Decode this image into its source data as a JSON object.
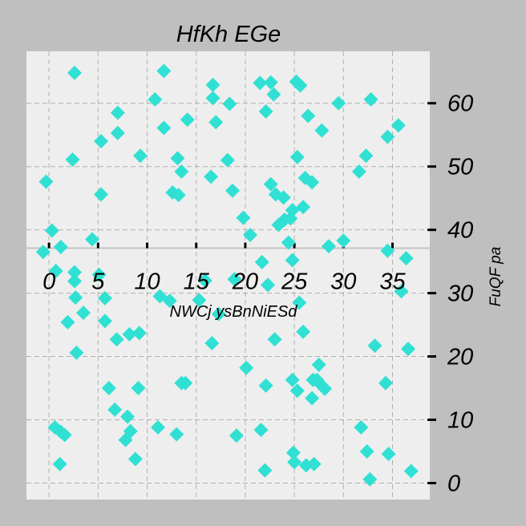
{
  "chart_data": {
    "type": "scatter",
    "title": "HfKh EGe",
    "xlabel": "NWCj ysBnNiESd",
    "ylabel": "FuQF pa",
    "xlim": [
      -2.3,
      38.8
    ],
    "ylim": [
      -2.6,
      68.2
    ],
    "xticks": [
      0,
      5,
      10,
      15,
      20,
      25,
      30,
      35
    ],
    "xtick_labels": [
      "0",
      "5",
      "10",
      "15",
      "20",
      "25",
      "30",
      "35"
    ],
    "yticks": [
      0,
      10,
      20,
      30,
      40,
      50,
      60
    ],
    "ytick_labels": [
      "0",
      "10",
      "20",
      "30",
      "40",
      "50",
      "60"
    ],
    "x_axis_at_y": 37.1,
    "y_axis_side": "right",
    "grid": true,
    "marker": "diamond",
    "color": "#30e0d3",
    "background": "#eeeeee",
    "figure_background": "#bfbfbf",
    "points": [
      [
        -0.3,
        47.6
      ],
      [
        2.6,
        64.8
      ],
      [
        -0.6,
        36.5
      ],
      [
        0.3,
        39.9
      ],
      [
        1.2,
        37.3
      ],
      [
        0.7,
        33.5
      ],
      [
        2.4,
        51.1
      ],
      [
        2.6,
        33.3
      ],
      [
        2.6,
        31.9
      ],
      [
        2.7,
        29.3
      ],
      [
        3.5,
        26.9
      ],
      [
        1.9,
        25.4
      ],
      [
        2.8,
        20.6
      ],
      [
        0.6,
        8.8
      ],
      [
        1.6,
        7.6
      ],
      [
        1.2,
        8.1
      ],
      [
        1.1,
        3.0
      ],
      [
        4.4,
        38.5
      ],
      [
        5.1,
        32.9
      ],
      [
        5.3,
        45.6
      ],
      [
        5.3,
        54.0
      ],
      [
        5.7,
        29.2
      ],
      [
        5.7,
        25.6
      ],
      [
        6.9,
        22.7
      ],
      [
        6.1,
        15.0
      ],
      [
        6.7,
        11.6
      ],
      [
        7.0,
        55.3
      ],
      [
        7.0,
        58.5
      ],
      [
        8.2,
        23.5
      ],
      [
        8.0,
        10.5
      ],
      [
        7.8,
        6.8
      ],
      [
        8.3,
        8.2
      ],
      [
        8.8,
        3.8
      ],
      [
        9.1,
        15.0
      ],
      [
        9.2,
        23.7
      ],
      [
        9.3,
        51.7
      ],
      [
        11.3,
        29.5
      ],
      [
        11.1,
        8.8
      ],
      [
        10.8,
        60.6
      ],
      [
        11.7,
        65.1
      ],
      [
        11.7,
        56.1
      ],
      [
        12.3,
        28.8
      ],
      [
        12.6,
        45.9
      ],
      [
        13.1,
        51.3
      ],
      [
        13.2,
        45.5
      ],
      [
        13.5,
        49.2
      ],
      [
        13.0,
        7.7
      ],
      [
        13.5,
        15.8
      ],
      [
        13.9,
        15.8
      ],
      [
        14.1,
        57.4
      ],
      [
        15.3,
        28.9
      ],
      [
        15.9,
        32.0
      ],
      [
        16.5,
        48.4
      ],
      [
        16.6,
        22.1
      ],
      [
        16.7,
        60.8
      ],
      [
        16.7,
        62.9
      ],
      [
        17.0,
        57.0
      ],
      [
        17.3,
        26.7
      ],
      [
        18.2,
        51.0
      ],
      [
        18.4,
        59.9
      ],
      [
        18.7,
        46.2
      ],
      [
        18.9,
        32.2
      ],
      [
        19.1,
        7.5
      ],
      [
        19.8,
        41.9
      ],
      [
        20.1,
        18.2
      ],
      [
        20.5,
        39.2
      ],
      [
        21.6,
        8.4
      ],
      [
        21.7,
        34.9
      ],
      [
        21.5,
        63.2
      ],
      [
        22.1,
        58.7
      ],
      [
        22.3,
        31.3
      ],
      [
        22.0,
        2.0
      ],
      [
        22.1,
        15.4
      ],
      [
        22.6,
        47.2
      ],
      [
        22.6,
        63.3
      ],
      [
        22.9,
        61.4
      ],
      [
        23.0,
        22.7
      ],
      [
        23.1,
        45.6
      ],
      [
        23.4,
        40.8
      ],
      [
        23.9,
        45.1
      ],
      [
        24.0,
        41.6
      ],
      [
        24.4,
        38.0
      ],
      [
        24.8,
        43.1
      ],
      [
        24.6,
        41.8
      ],
      [
        24.8,
        35.2
      ],
      [
        24.8,
        16.3
      ],
      [
        24.9,
        4.8
      ],
      [
        25.0,
        3.3
      ],
      [
        25.3,
        14.6
      ],
      [
        25.2,
        63.4
      ],
      [
        25.6,
        62.8
      ],
      [
        25.3,
        51.5
      ],
      [
        25.5,
        28.5
      ],
      [
        25.9,
        23.9
      ],
      [
        25.9,
        43.6
      ],
      [
        26.1,
        48.2
      ],
      [
        26.4,
        58.0
      ],
      [
        26.2,
        2.8
      ],
      [
        26.8,
        13.4
      ],
      [
        26.8,
        47.5
      ],
      [
        26.9,
        16.3
      ],
      [
        27.0,
        3.0
      ],
      [
        27.3,
        16.3
      ],
      [
        27.5,
        18.7
      ],
      [
        27.8,
        55.7
      ],
      [
        27.8,
        15.4
      ],
      [
        28.1,
        14.9
      ],
      [
        28.5,
        37.4
      ],
      [
        29.5,
        60.0
      ],
      [
        30.0,
        38.3
      ],
      [
        31.8,
        8.8
      ],
      [
        31.6,
        49.2
      ],
      [
        32.3,
        51.7
      ],
      [
        32.8,
        60.6
      ],
      [
        32.4,
        5.0
      ],
      [
        32.7,
        0.6
      ],
      [
        33.2,
        21.7
      ],
      [
        34.3,
        15.8
      ],
      [
        34.5,
        36.7
      ],
      [
        34.5,
        54.7
      ],
      [
        34.6,
        4.6
      ],
      [
        35.6,
        56.5
      ],
      [
        35.9,
        30.3
      ],
      [
        36.4,
        35.5
      ],
      [
        36.6,
        21.2
      ],
      [
        36.9,
        1.9
      ]
    ]
  }
}
